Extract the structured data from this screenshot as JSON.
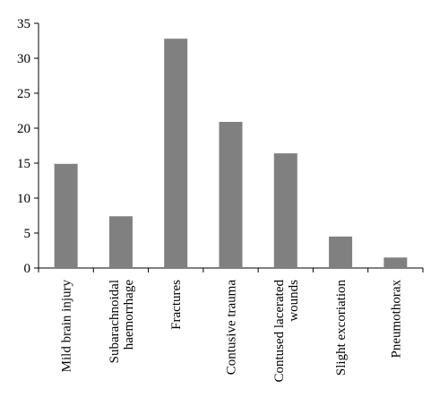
{
  "chart_data": {
    "type": "bar",
    "categories": [
      [
        "Mild brain injury"
      ],
      [
        "Subarachnoidal",
        "haemorrhage"
      ],
      [
        "Fractures"
      ],
      [
        "Contusive trauma"
      ],
      [
        "Contused lacerated",
        "wounds"
      ],
      [
        "Slight excoriation"
      ],
      [
        "Pneumothorax"
      ]
    ],
    "values": [
      14.9,
      7.4,
      32.8,
      20.9,
      16.4,
      4.5,
      1.5
    ],
    "ylim": [
      0,
      35
    ],
    "yticks": [
      "0",
      "5",
      "10",
      "15",
      "20",
      "25",
      "30",
      "35"
    ],
    "title": "",
    "xlabel": "",
    "ylabel": "",
    "grid": false,
    "bar_color": "#808080"
  }
}
